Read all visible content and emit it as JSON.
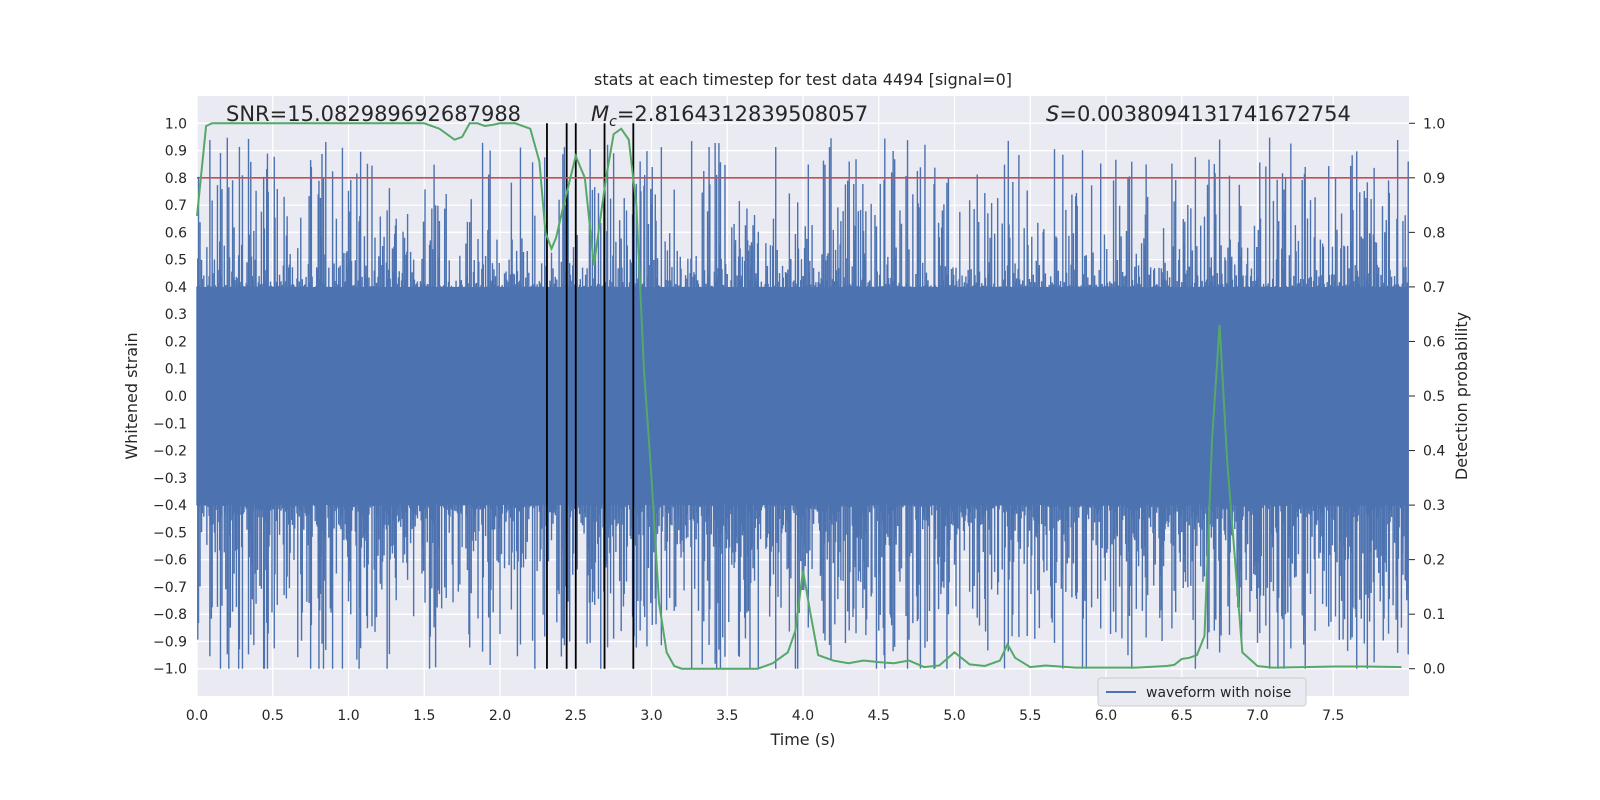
{
  "chart_data": {
    "type": "line",
    "title": "stats at each timestep for test data 4494 [signal=0]",
    "xlabel": "Time (s)",
    "ylabel": "Whitened strain",
    "ylabel_right": "Detection probability",
    "xlim": [
      0.0,
      8.0
    ],
    "ylim": [
      -1.1,
      1.1
    ],
    "ylim_right": [
      -0.05,
      1.05
    ],
    "x_ticks": [
      "0.0",
      "0.5",
      "1.0",
      "1.5",
      "2.0",
      "2.5",
      "3.0",
      "3.5",
      "4.0",
      "4.5",
      "5.0",
      "5.5",
      "6.0",
      "6.5",
      "7.0",
      "7.5"
    ],
    "y_ticks": [
      "1.0",
      "0.9",
      "0.8",
      "0.7",
      "0.6",
      "0.5",
      "0.4",
      "0.3",
      "0.2",
      "0.1",
      "0.0",
      "−0.1",
      "−0.2",
      "−0.3",
      "−0.4",
      "−0.5",
      "−0.6",
      "−0.7",
      "−0.8",
      "−0.9",
      "−1.0"
    ],
    "y_ticks_right": [
      "1.0",
      "0.9",
      "0.8",
      "0.7",
      "0.6",
      "0.5",
      "0.4",
      "0.3",
      "0.2",
      "0.1",
      "0.0"
    ],
    "annotations": {
      "snr": "SNR=15.082989692687988",
      "mc_symbol": "M",
      "mc_sub": "c",
      "mc_value": "=2.8164312839508057",
      "s_symbol": "S",
      "s_value": "=0.0038094131741672754"
    },
    "legend": {
      "label": "waveform with noise",
      "location": "lower-right"
    },
    "threshold_probability": 0.9,
    "vertical_markers": [
      2.31,
      2.44,
      2.5,
      2.69,
      2.88
    ],
    "series": [
      {
        "name": "waveform with noise",
        "axis": "left",
        "color": "#4c72b0",
        "noise_envelope": 0.4,
        "sample_rate_hz": 200
      },
      {
        "name": "detection probability",
        "axis": "right",
        "color": "#55a868",
        "x": [
          0.0,
          0.06,
          0.1,
          0.2,
          0.5,
          1.0,
          1.5,
          1.6,
          1.7,
          1.75,
          1.8,
          1.85,
          1.9,
          1.95,
          2.0,
          2.1,
          2.2,
          2.26,
          2.3,
          2.34,
          2.37,
          2.42,
          2.5,
          2.56,
          2.62,
          2.65,
          2.7,
          2.75,
          2.8,
          2.85,
          2.9,
          2.95,
          3.0,
          3.05,
          3.1,
          3.15,
          3.2,
          3.3,
          3.5,
          3.7,
          3.8,
          3.9,
          3.95,
          4.0,
          4.05,
          4.1,
          4.2,
          4.3,
          4.4,
          4.5,
          4.6,
          4.7,
          4.8,
          4.9,
          5.0,
          5.1,
          5.2,
          5.3,
          5.35,
          5.4,
          5.5,
          5.6,
          5.8,
          6.0,
          6.2,
          6.4,
          6.45,
          6.5,
          6.55,
          6.6,
          6.65,
          6.7,
          6.75,
          6.8,
          6.9,
          7.0,
          7.1,
          7.3,
          7.5,
          7.7,
          7.95
        ],
        "y": [
          0.83,
          0.995,
          1.0,
          1.0,
          1.0,
          1.0,
          1.0,
          0.99,
          0.97,
          0.975,
          1.0,
          1.0,
          0.995,
          0.997,
          1.0,
          1.0,
          0.99,
          0.93,
          0.8,
          0.77,
          0.79,
          0.85,
          0.94,
          0.9,
          0.74,
          0.8,
          0.9,
          0.98,
          0.99,
          0.97,
          0.85,
          0.55,
          0.35,
          0.12,
          0.03,
          0.005,
          0.0,
          0.0,
          0.0,
          0.0,
          0.01,
          0.03,
          0.07,
          0.18,
          0.1,
          0.025,
          0.015,
          0.01,
          0.015,
          0.012,
          0.01,
          0.015,
          0.003,
          0.006,
          0.03,
          0.008,
          0.005,
          0.015,
          0.045,
          0.02,
          0.003,
          0.006,
          0.002,
          0.002,
          0.002,
          0.005,
          0.007,
          0.018,
          0.02,
          0.025,
          0.06,
          0.42,
          0.63,
          0.38,
          0.03,
          0.005,
          0.002,
          0.003,
          0.004,
          0.004,
          0.003
        ]
      }
    ]
  },
  "colors": {
    "plot_background": "#eaeaf2",
    "grid": "#ffffff",
    "waveform": "#4c72b0",
    "probability": "#55a868",
    "threshold": "#c44e52",
    "markers": "#000000",
    "text": "#262626"
  }
}
